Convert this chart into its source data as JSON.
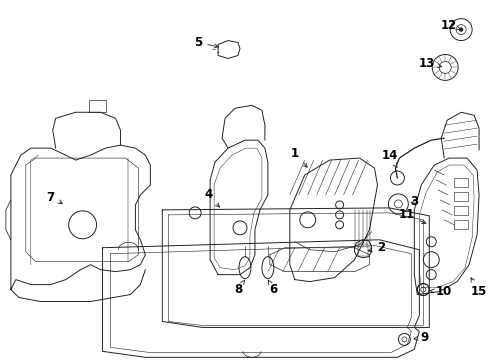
{
  "bg_color": "#ffffff",
  "line_color": "#222222",
  "fig_width": 4.89,
  "fig_height": 3.6,
  "dpi": 100,
  "lw": 0.7,
  "label_fontsize": 8.5
}
